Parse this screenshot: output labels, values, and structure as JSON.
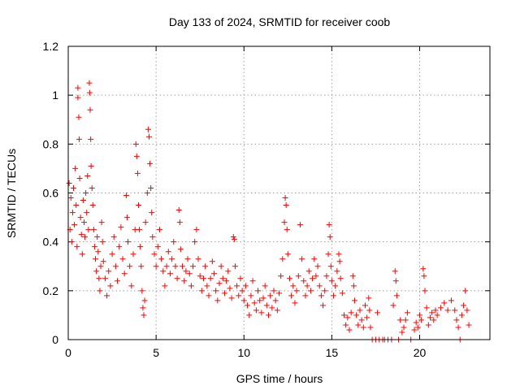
{
  "chart_data": {
    "type": "scatter",
    "title": "Day 133 of 2024, SRMTID for receiver coob",
    "xlabel": "GPS time / hours",
    "ylabel": "SRMTID / TECUs",
    "xlim": [
      0,
      24
    ],
    "ylim": [
      0,
      1.2
    ],
    "xticks": [
      0,
      5,
      10,
      15,
      20
    ],
    "xtick_labels": [
      "0",
      "5",
      "10",
      "15",
      "20"
    ],
    "yticks": [
      0,
      0.2,
      0.4,
      0.6,
      0.8,
      1.0,
      1.2
    ],
    "ytick_labels": [
      "0",
      "0.2",
      "0.4",
      "0.6",
      "0.8",
      "1",
      "1.2"
    ],
    "grid": true,
    "marker": "+",
    "color": "#ff0000",
    "series": [
      {
        "name": "SRMTID",
        "points": [
          [
            0.05,
            0.64
          ],
          [
            0.1,
            0.45
          ],
          [
            0.15,
            0.58
          ],
          [
            0.2,
            0.4
          ],
          [
            0.25,
            0.52
          ],
          [
            0.3,
            0.62
          ],
          [
            0.35,
            0.47
          ],
          [
            0.4,
            0.7
          ],
          [
            0.45,
            0.55
          ],
          [
            0.5,
            0.38
          ],
          [
            0.55,
            1.03
          ],
          [
            0.55,
            0.99
          ],
          [
            0.6,
            0.91
          ],
          [
            0.62,
            0.82
          ],
          [
            0.65,
            0.66
          ],
          [
            0.7,
            0.5
          ],
          [
            0.75,
            0.43
          ],
          [
            0.8,
            0.35
          ],
          [
            0.85,
            0.57
          ],
          [
            0.9,
            0.48
          ],
          [
            0.95,
            0.42
          ],
          [
            1.0,
            0.6
          ],
          [
            1.05,
            0.52
          ],
          [
            1.1,
            0.67
          ],
          [
            1.15,
            0.45
          ],
          [
            1.2,
            1.05
          ],
          [
            1.22,
            1.01
          ],
          [
            1.25,
            0.94
          ],
          [
            1.28,
            0.82
          ],
          [
            1.3,
            0.71
          ],
          [
            1.35,
            0.62
          ],
          [
            1.4,
            0.55
          ],
          [
            1.45,
            0.45
          ],
          [
            1.5,
            0.38
          ],
          [
            1.55,
            0.33
          ],
          [
            1.6,
            0.28
          ],
          [
            1.65,
            0.42
          ],
          [
            1.7,
            0.36
          ],
          [
            1.75,
            0.25
          ],
          [
            1.8,
            0.2
          ],
          [
            1.85,
            0.3
          ],
          [
            1.9,
            0.48
          ],
          [
            1.95,
            0.4
          ],
          [
            2.0,
            0.32
          ],
          [
            2.1,
            0.25
          ],
          [
            2.2,
            0.18
          ],
          [
            2.3,
            0.28
          ],
          [
            2.4,
            0.22
          ],
          [
            2.5,
            0.35
          ],
          [
            2.6,
            0.42
          ],
          [
            2.7,
            0.3
          ],
          [
            2.8,
            0.24
          ],
          [
            2.9,
            0.38
          ],
          [
            3.0,
            0.46
          ],
          [
            3.1,
            0.33
          ],
          [
            3.2,
            0.27
          ],
          [
            3.3,
            0.59
          ],
          [
            3.35,
            0.5
          ],
          [
            3.4,
            0.4
          ],
          [
            3.5,
            0.3
          ],
          [
            3.6,
            0.22
          ],
          [
            3.7,
            0.35
          ],
          [
            3.8,
            0.45
          ],
          [
            3.85,
            0.8
          ],
          [
            3.9,
            0.75
          ],
          [
            3.95,
            0.68
          ],
          [
            4.0,
            0.55
          ],
          [
            4.05,
            0.45
          ],
          [
            4.1,
            0.38
          ],
          [
            4.15,
            0.3
          ],
          [
            4.2,
            0.2
          ],
          [
            4.25,
            0.13
          ],
          [
            4.3,
            0.1
          ],
          [
            4.35,
            0.16
          ],
          [
            4.4,
            0.48
          ],
          [
            4.5,
            0.6
          ],
          [
            4.55,
            0.86
          ],
          [
            4.6,
            0.83
          ],
          [
            4.65,
            0.72
          ],
          [
            4.7,
            0.62
          ],
          [
            4.75,
            0.52
          ],
          [
            4.8,
            0.42
          ],
          [
            4.9,
            0.35
          ],
          [
            5.0,
            0.3
          ],
          [
            5.1,
            0.38
          ],
          [
            5.2,
            0.45
          ],
          [
            5.3,
            0.33
          ],
          [
            5.4,
            0.28
          ],
          [
            5.5,
            0.22
          ],
          [
            5.6,
            0.3
          ],
          [
            5.7,
            0.36
          ],
          [
            5.8,
            0.27
          ],
          [
            5.9,
            0.33
          ],
          [
            6.0,
            0.4
          ],
          [
            6.1,
            0.3
          ],
          [
            6.2,
            0.25
          ],
          [
            6.3,
            0.53
          ],
          [
            6.35,
            0.48
          ],
          [
            6.4,
            0.37
          ],
          [
            6.5,
            0.3
          ],
          [
            6.6,
            0.24
          ],
          [
            6.7,
            0.28
          ],
          [
            6.8,
            0.33
          ],
          [
            6.9,
            0.27
          ],
          [
            7.0,
            0.22
          ],
          [
            7.1,
            0.3
          ],
          [
            7.2,
            0.4
          ],
          [
            7.3,
            0.45
          ],
          [
            7.4,
            0.33
          ],
          [
            7.5,
            0.26
          ],
          [
            7.6,
            0.2
          ],
          [
            7.7,
            0.25
          ],
          [
            7.8,
            0.3
          ],
          [
            7.9,
            0.22
          ],
          [
            8.0,
            0.18
          ],
          [
            8.1,
            0.25
          ],
          [
            8.2,
            0.32
          ],
          [
            8.3,
            0.27
          ],
          [
            8.4,
            0.2
          ],
          [
            8.5,
            0.16
          ],
          [
            8.6,
            0.23
          ],
          [
            8.7,
            0.3
          ],
          [
            8.8,
            0.25
          ],
          [
            8.9,
            0.19
          ],
          [
            9.0,
            0.24
          ],
          [
            9.1,
            0.28
          ],
          [
            9.2,
            0.21
          ],
          [
            9.3,
            0.17
          ],
          [
            9.4,
            0.42
          ],
          [
            9.45,
            0.41
          ],
          [
            9.5,
            0.3
          ],
          [
            9.6,
            0.22
          ],
          [
            9.7,
            0.18
          ],
          [
            9.8,
            0.25
          ],
          [
            9.9,
            0.2
          ],
          [
            10.0,
            0.16
          ],
          [
            10.1,
            0.22
          ],
          [
            10.2,
            0.14
          ],
          [
            10.3,
            0.1
          ],
          [
            10.4,
            0.18
          ],
          [
            10.5,
            0.24
          ],
          [
            10.6,
            0.15
          ],
          [
            10.7,
            0.12
          ],
          [
            10.8,
            0.2
          ],
          [
            10.9,
            0.16
          ],
          [
            11.0,
            0.11
          ],
          [
            11.1,
            0.17
          ],
          [
            11.2,
            0.22
          ],
          [
            11.3,
            0.14
          ],
          [
            11.4,
            0.1
          ],
          [
            11.5,
            0.18
          ],
          [
            11.6,
            0.13
          ],
          [
            11.7,
            0.2
          ],
          [
            11.8,
            0.16
          ],
          [
            11.9,
            0.12
          ],
          [
            12.0,
            0.19
          ],
          [
            12.1,
            0.26
          ],
          [
            12.2,
            0.33
          ],
          [
            12.3,
            0.48
          ],
          [
            12.35,
            0.58
          ],
          [
            12.4,
            0.55
          ],
          [
            12.45,
            0.45
          ],
          [
            12.5,
            0.35
          ],
          [
            12.6,
            0.25
          ],
          [
            12.7,
            0.18
          ],
          [
            12.8,
            0.22
          ],
          [
            12.9,
            0.15
          ],
          [
            13.0,
            0.2
          ],
          [
            13.1,
            0.26
          ],
          [
            13.2,
            0.47
          ],
          [
            13.3,
            0.33
          ],
          [
            13.4,
            0.24
          ],
          [
            13.5,
            0.18
          ],
          [
            13.6,
            0.22
          ],
          [
            13.7,
            0.28
          ],
          [
            13.8,
            0.2
          ],
          [
            13.9,
            0.25
          ],
          [
            14.0,
            0.33
          ],
          [
            14.1,
            0.26
          ],
          [
            14.2,
            0.3
          ],
          [
            14.3,
            0.22
          ],
          [
            14.4,
            0.18
          ],
          [
            14.5,
            0.14
          ],
          [
            14.6,
            0.2
          ],
          [
            14.7,
            0.26
          ],
          [
            14.8,
            0.35
          ],
          [
            14.85,
            0.47
          ],
          [
            14.9,
            0.42
          ],
          [
            14.95,
            0.3
          ],
          [
            15.0,
            0.24
          ],
          [
            15.1,
            0.18
          ],
          [
            15.2,
            0.22
          ],
          [
            15.3,
            0.28
          ],
          [
            15.4,
            0.35
          ],
          [
            15.45,
            0.32
          ],
          [
            15.5,
            0.25
          ],
          [
            15.6,
            0.19
          ],
          [
            15.7,
            0.1
          ],
          [
            15.8,
            0.06
          ],
          [
            15.9,
            0.09
          ],
          [
            16.0,
            0.04
          ],
          [
            16.1,
            0.11
          ],
          [
            16.2,
            0.26
          ],
          [
            16.25,
            0.22
          ],
          [
            16.3,
            0.16
          ],
          [
            16.4,
            0.1
          ],
          [
            16.5,
            0.06
          ],
          [
            16.6,
            0.12
          ],
          [
            16.7,
            0.08
          ],
          [
            16.8,
            0.05
          ],
          [
            16.9,
            0.14
          ],
          [
            17.0,
            0.09
          ],
          [
            17.1,
            0.17
          ],
          [
            17.15,
            0.12
          ],
          [
            17.2,
            0.05
          ],
          [
            17.3,
            0.0
          ],
          [
            17.5,
            0.0
          ],
          [
            17.6,
            0.11
          ],
          [
            17.7,
            0.0
          ],
          [
            17.9,
            0.0
          ],
          [
            18.0,
            0.0
          ],
          [
            18.2,
            0.0
          ],
          [
            18.4,
            0.0
          ],
          [
            18.5,
            0.14
          ],
          [
            18.6,
            0.28
          ],
          [
            18.65,
            0.24
          ],
          [
            18.7,
            0.18
          ],
          [
            18.8,
            0.0
          ],
          [
            18.9,
            0.08
          ],
          [
            19.0,
            0.03
          ],
          [
            19.1,
            0.05
          ],
          [
            19.2,
            0.08
          ],
          [
            19.3,
            0.11
          ],
          [
            19.5,
            0.0
          ],
          [
            19.7,
            0.04
          ],
          [
            19.8,
            0.07
          ],
          [
            19.9,
            0.05
          ],
          [
            20.0,
            0.1
          ],
          [
            20.1,
            0.08
          ],
          [
            20.2,
            0.29
          ],
          [
            20.25,
            0.26
          ],
          [
            20.3,
            0.2
          ],
          [
            20.4,
            0.13
          ],
          [
            20.5,
            0.06
          ],
          [
            20.6,
            0.09
          ],
          [
            20.7,
            0.11
          ],
          [
            20.8,
            0.08
          ],
          [
            20.9,
            0.12
          ],
          [
            21.0,
            0.1
          ],
          [
            21.2,
            0.13
          ],
          [
            21.4,
            0.15
          ],
          [
            21.6,
            0.12
          ],
          [
            21.8,
            0.16
          ],
          [
            22.0,
            0.12
          ],
          [
            22.1,
            0.08
          ],
          [
            22.2,
            0.05
          ],
          [
            22.3,
            0.0
          ],
          [
            22.4,
            0.1
          ],
          [
            22.5,
            0.14
          ],
          [
            22.6,
            0.2
          ],
          [
            22.7,
            0.12
          ],
          [
            22.8,
            0.06
          ]
        ]
      }
    ]
  }
}
